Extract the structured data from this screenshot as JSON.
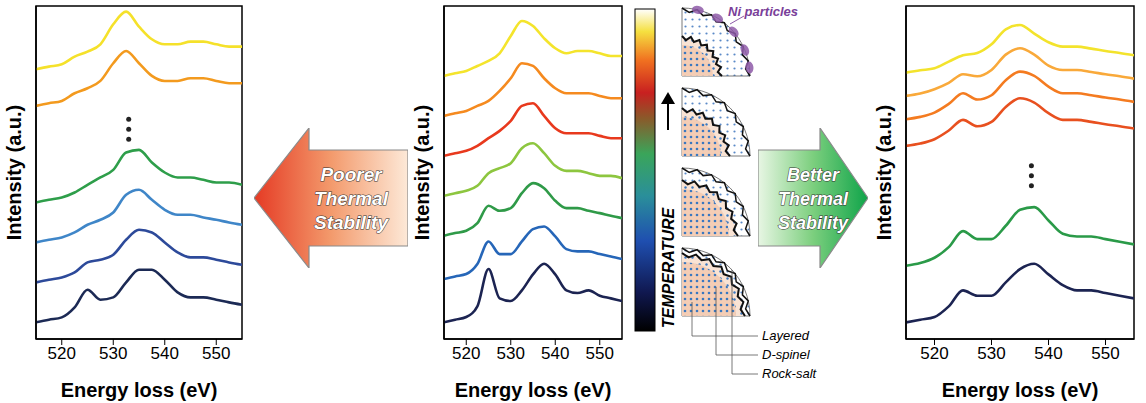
{
  "chart_data": [
    {
      "type": "line",
      "x_label": "Energy loss (eV)",
      "y_label": "Intensity (a.u.)",
      "grid": false,
      "tick_labels": "x",
      "x": [
        515,
        517.5,
        520,
        522.5,
        525,
        527.5,
        530,
        532.5,
        535,
        537.5,
        540,
        542.5,
        545,
        547.5,
        550,
        552.5,
        555
      ],
      "xlim": [
        515,
        555
      ],
      "xticks": [
        520,
        530,
        540,
        550
      ],
      "ylim": [
        0,
        10
      ],
      "series": [
        {
          "color": "#1c2a55",
          "values": [
            0.5,
            0.58,
            0.65,
            0.95,
            1.48,
            1.18,
            1.25,
            1.7,
            2.08,
            2.08,
            1.78,
            1.4,
            1.25,
            1.25,
            1.18,
            1.1,
            1.03
          ]
        },
        {
          "color": "#2d4a9a",
          "values": [
            1.7,
            1.78,
            1.85,
            2.0,
            2.3,
            2.38,
            2.53,
            2.98,
            3.28,
            3.2,
            2.9,
            2.6,
            2.45,
            2.45,
            2.38,
            2.3,
            2.23
          ]
        },
        {
          "color": "#3f86c8",
          "values": [
            2.9,
            2.98,
            3.05,
            3.2,
            3.43,
            3.58,
            3.8,
            4.33,
            4.48,
            4.18,
            3.88,
            3.73,
            3.73,
            3.65,
            3.58,
            3.5,
            3.43
          ]
        },
        {
          "color": "#2e9e4a",
          "values": [
            4.1,
            4.18,
            4.25,
            4.4,
            4.63,
            4.85,
            5.08,
            5.6,
            5.68,
            5.3,
            5.0,
            4.85,
            4.85,
            4.78,
            4.7,
            4.7,
            4.63
          ]
        },
        {
          "color": "#f39a1e",
          "values": [
            7.0,
            7.08,
            7.15,
            7.38,
            7.53,
            7.75,
            8.28,
            8.65,
            8.28,
            7.9,
            7.75,
            7.75,
            7.83,
            7.83,
            7.75,
            7.68,
            7.68
          ]
        },
        {
          "color": "#f5e12a",
          "values": [
            8.1,
            8.18,
            8.25,
            8.48,
            8.63,
            8.85,
            9.45,
            9.83,
            9.38,
            9.0,
            8.85,
            8.85,
            8.93,
            8.93,
            8.85,
            8.78,
            8.78
          ]
        }
      ]
    },
    {
      "type": "line",
      "x_label": "Energy loss (eV)",
      "y_label": "Intensity (a.u.)",
      "grid": false,
      "tick_labels": "x",
      "x": [
        515,
        517.5,
        520,
        522.5,
        525,
        527.5,
        530,
        532.5,
        535,
        537.5,
        540,
        542.5,
        545,
        547.5,
        550,
        552.5,
        555
      ],
      "xlim": [
        515,
        555
      ],
      "xticks": [
        520,
        530,
        540,
        550
      ],
      "ylim": [
        0,
        10
      ],
      "series": [
        {
          "color": "#1c2452",
          "values": [
            0.5,
            0.58,
            0.66,
            0.98,
            2.1,
            1.22,
            1.14,
            1.46,
            1.94,
            2.26,
            1.94,
            1.46,
            1.38,
            1.46,
            1.3,
            1.22,
            1.14
          ]
        },
        {
          "color": "#2666b8",
          "values": [
            1.8,
            1.88,
            1.95,
            2.25,
            2.93,
            2.55,
            2.55,
            2.93,
            3.3,
            3.38,
            3.08,
            2.7,
            2.63,
            2.63,
            2.55,
            2.48,
            2.4
          ]
        },
        {
          "color": "#2f9a48",
          "values": [
            3.1,
            3.18,
            3.25,
            3.48,
            4.0,
            3.85,
            3.93,
            4.38,
            4.68,
            4.53,
            4.15,
            3.93,
            3.93,
            3.85,
            3.78,
            3.7,
            3.63
          ]
        },
        {
          "color": "#8dc63f",
          "values": [
            4.3,
            4.38,
            4.45,
            4.6,
            4.98,
            5.13,
            5.28,
            5.73,
            5.88,
            5.58,
            5.2,
            5.05,
            5.05,
            4.98,
            4.9,
            4.9,
            4.83
          ]
        },
        {
          "color": "#e8391d",
          "values": [
            5.5,
            5.58,
            5.65,
            5.8,
            6.03,
            6.25,
            6.55,
            7.0,
            7.08,
            6.7,
            6.33,
            6.18,
            6.18,
            6.18,
            6.1,
            6.03,
            6.03
          ]
        },
        {
          "color": "#f58a1f",
          "values": [
            6.7,
            6.78,
            6.85,
            7.0,
            7.15,
            7.45,
            7.83,
            8.28,
            8.2,
            7.83,
            7.53,
            7.38,
            7.38,
            7.38,
            7.3,
            7.23,
            7.23
          ]
        },
        {
          "color": "#f4e42c",
          "values": [
            7.9,
            7.98,
            8.05,
            8.2,
            8.35,
            8.58,
            9.1,
            9.55,
            9.4,
            9.03,
            8.73,
            8.58,
            8.65,
            8.65,
            8.58,
            8.5,
            8.5
          ]
        }
      ]
    },
    {
      "type": "line",
      "x_label": "Energy loss (eV)",
      "y_label": "Intensity (a.u.)",
      "grid": false,
      "tick_labels": "x",
      "x": [
        515,
        517.5,
        520,
        522.5,
        525,
        527.5,
        530,
        532.5,
        535,
        537.5,
        540,
        542.5,
        545,
        547.5,
        550,
        552.5,
        555
      ],
      "xlim": [
        515,
        555
      ],
      "xticks": [
        520,
        530,
        540,
        550
      ],
      "ylim": [
        0,
        10
      ],
      "series": [
        {
          "color": "#1c2452",
          "values": [
            0.5,
            0.58,
            0.66,
            0.98,
            1.46,
            1.3,
            1.3,
            1.7,
            2.1,
            2.26,
            1.94,
            1.62,
            1.46,
            1.46,
            1.38,
            1.3,
            1.22
          ]
        },
        {
          "color": "#2a9a48",
          "values": [
            2.2,
            2.28,
            2.44,
            2.76,
            3.24,
            3.0,
            3.0,
            3.4,
            3.88,
            3.96,
            3.56,
            3.16,
            3.08,
            3.08,
            3.0,
            2.92,
            2.84
          ]
        },
        {
          "color": "#e8501f",
          "values": [
            5.8,
            5.87,
            6.0,
            6.26,
            6.58,
            6.39,
            6.52,
            6.97,
            7.23,
            7.1,
            6.78,
            6.58,
            6.58,
            6.52,
            6.45,
            6.39,
            6.32
          ]
        },
        {
          "color": "#f47b20",
          "values": [
            6.6,
            6.67,
            6.8,
            7.06,
            7.38,
            7.19,
            7.32,
            7.77,
            8.03,
            7.9,
            7.58,
            7.38,
            7.38,
            7.32,
            7.25,
            7.19,
            7.12
          ]
        },
        {
          "color": "#f9a93a",
          "values": [
            7.3,
            7.37,
            7.5,
            7.69,
            7.95,
            7.89,
            8.08,
            8.54,
            8.73,
            8.54,
            8.21,
            8.08,
            8.08,
            8.02,
            7.95,
            7.89,
            7.82
          ]
        },
        {
          "color": "#f3e32c",
          "values": [
            8.0,
            8.07,
            8.13,
            8.33,
            8.52,
            8.59,
            8.85,
            9.3,
            9.43,
            9.17,
            8.91,
            8.78,
            8.78,
            8.72,
            8.65,
            8.59,
            8.52
          ]
        }
      ]
    }
  ],
  "arrows": [
    {
      "text": "Poorer Thermal Stability"
    },
    {
      "text": "Better Thermal Stability"
    }
  ],
  "colorbar": {
    "label": "TEMPERATURE"
  },
  "schematic": {
    "callout": "Ni particles",
    "phases": [
      "Layered",
      "D-spinel",
      "Rock-salt"
    ]
  }
}
